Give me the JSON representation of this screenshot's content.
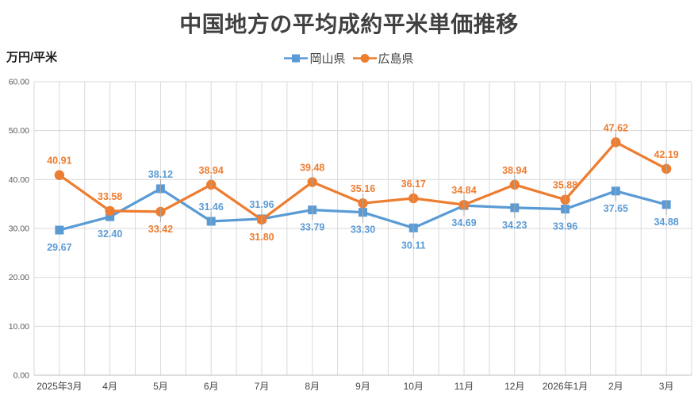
{
  "page": {
    "background": "#ffffff"
  },
  "chart_data": {
    "type": "line",
    "title": "中国地方の平均成約平米単価推移",
    "unit_label": "万円/平米",
    "legend_position": "top",
    "grid": true,
    "categories": [
      "2025年3月",
      "4月",
      "5月",
      "6月",
      "7月",
      "8月",
      "9月",
      "10月",
      "11月",
      "12月",
      "2026年1月",
      "2月",
      "3月"
    ],
    "ylim": [
      0,
      60
    ],
    "yticks": [
      0,
      10,
      20,
      30,
      40,
      50,
      60
    ],
    "ytick_labels": [
      "0.00",
      "10.00",
      "20.00",
      "30.00",
      "40.00",
      "50.00",
      "60.00"
    ],
    "series": [
      {
        "name": "岡山県",
        "color": "#5B9BD5",
        "marker": "square",
        "values": [
          29.67,
          32.4,
          38.12,
          31.46,
          31.96,
          33.79,
          33.3,
          30.11,
          34.69,
          34.23,
          33.96,
          37.65,
          34.88
        ],
        "data_labels": [
          "29.67",
          "32.40",
          "38.12",
          "31.46",
          "31.96",
          "33.79",
          "33.30",
          "30.11",
          "34.69",
          "34.23",
          "33.96",
          "37.65",
          "34.88"
        ],
        "label_positions": [
          "below",
          "below",
          "above",
          "above",
          "above",
          "below",
          "below",
          "below",
          "below",
          "below",
          "below",
          "below",
          "below"
        ],
        "label_leaders": [
          false,
          false,
          true,
          true,
          true,
          true,
          true,
          true,
          true,
          true,
          true,
          true,
          true
        ]
      },
      {
        "name": "広島県",
        "color": "#ED7D31",
        "marker": "circle",
        "values": [
          40.91,
          33.58,
          33.42,
          38.94,
          31.8,
          39.48,
          35.16,
          36.17,
          34.84,
          38.94,
          35.88,
          47.62,
          42.19
        ],
        "data_labels": [
          "40.91",
          "33.58",
          "33.42",
          "38.94",
          "31.80",
          "39.48",
          "35.16",
          "36.17",
          "34.84",
          "38.94",
          "35.88",
          "47.62",
          "42.19"
        ],
        "label_positions": [
          "above",
          "above",
          "below",
          "above",
          "below",
          "above",
          "above",
          "above",
          "above",
          "above",
          "above",
          "above",
          "above"
        ],
        "label_leaders": [
          false,
          false,
          true,
          true,
          true,
          true,
          true,
          true,
          true,
          true,
          true,
          true,
          true
        ]
      }
    ],
    "colors": {
      "gridline": "#D9D9D9",
      "axis_line": "#BFBFBF",
      "tick_label": "#595959",
      "category_label": "#454545",
      "title": "#404040",
      "leader_line": "#A6A6A6"
    }
  }
}
